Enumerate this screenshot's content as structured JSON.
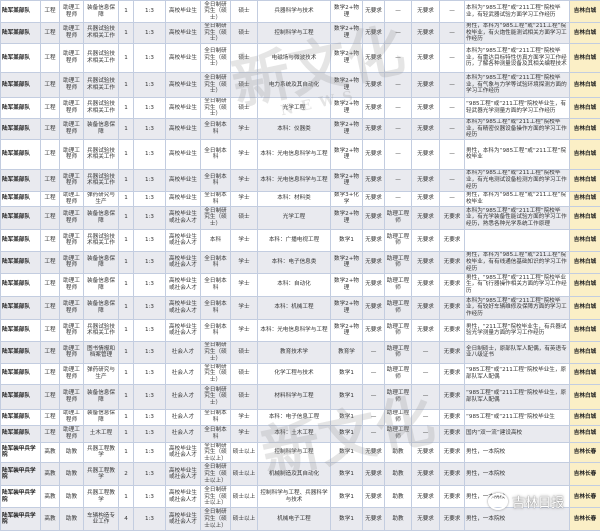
{
  "colors": {
    "border": "#c3cde0",
    "alt_row": "#e9eaef",
    "location_cell": "#fbefc6"
  },
  "watermark": {
    "text": "新文化",
    "subtext": "NEWS"
  },
  "logo": {
    "icon": "wechat-icon",
    "text": "吉林日报"
  },
  "rows": [
    [
      "陆军某部队",
      "工程",
      "助理工程师",
      "装备信息保障",
      "1",
      "1:3",
      "高校毕业生",
      "全日制研究生（硕士）",
      "硕士",
      "兵器科学与技术",
      "数学2+物理",
      "无要求",
      "—",
      "无要求",
      "—",
      "本科为“985工程”或“211工程”院校毕业，有轻武器试验方面学习工作经历",
      "吉林白城"
    ],
    [
      "陆军某部队",
      "工程",
      "助理工程师",
      "兵器试验技术相关工作",
      "1",
      "1:3",
      "高校毕业生",
      "全日制研究生（硕士）",
      "硕士",
      "控制科学与工程",
      "数学2+物理",
      "无要求",
      "—",
      "无要求",
      "—",
      "男性，本科为“985工程”或“211工程”院校毕业，有火炮性能测试相关方面学习工作经历",
      "吉林白城"
    ],
    [
      "陆军某部队",
      "工程",
      "助理工程师",
      "兵器试验技术相关工作",
      "1",
      "1:3",
      "高校毕业生",
      "全日制研究生（硕士）",
      "硕士",
      "电磁场与微波技术",
      "数学2+物理",
      "无要求",
      "—",
      "无要求",
      "—",
      "本科为“985工程”或“211工程”院校毕业，有雷达目标特性仿真方面学习工作经历，了解各种测量设备及其相关编程技术",
      "吉林白城"
    ],
    [
      "陆军某部队",
      "工程",
      "助理工程师",
      "兵器试验技术相关工作",
      "1",
      "1:3",
      "高校毕业生",
      "全日制研究生（硕士）",
      "硕士",
      "电力系统及其自动化",
      "数学2+物理",
      "无要求",
      "—",
      "无要求",
      "—",
      "本科为“985工程”或“211工程”院校毕业，有气象与力学等试验环境探测方面的学习工作经历",
      "吉林白城"
    ],
    [
      "陆军某部队",
      "工程",
      "助理工程师",
      "兵器试验技术相关工作",
      "1",
      "1:3",
      "高校毕业生",
      "全日制研究生（硕士）",
      "硕士",
      "光学工程",
      "数学2+物理",
      "无要求",
      "—",
      "无要求",
      "—",
      "“985工程”或“211工程”院校毕业生，有轻武器光学测量方面的学习工作经历",
      "吉林白城"
    ],
    [
      "陆军某部队",
      "工程",
      "助理工程师",
      "装备信息保障",
      "1",
      "1:3",
      "高校毕业生",
      "全日制本科",
      "学士",
      "本科：仪器类",
      "数学2+物理",
      "无要求",
      "—",
      "无要求",
      "—",
      "本科为“985工程”或“211工程”院校毕业，有精密仪器设备操作方面的学习工作经历",
      "吉林白城"
    ],
    [
      "陆军某部队",
      "工程",
      "助理工程师",
      "兵器试验技术相关工作",
      "1",
      "1:3",
      "高校毕业生",
      "全日制本科",
      "学士",
      "本科：光电信息科学与工程",
      "数学2+物理",
      "无要求",
      "—",
      "无要求",
      "—",
      "男性，本科为“985工程”或“211工程”院校毕业",
      "吉林白城"
    ],
    [
      "陆军某部队",
      "工程",
      "助理工程师",
      "兵器试验技术相关工作",
      "1",
      "1:3",
      "高校毕业生",
      "全日制本科",
      "学士",
      "本科：光电信息科学与工程",
      "数学2+物理",
      "无要求",
      "—",
      "无要求",
      "—",
      "本科为“985工程”或“211工程”院校毕业，有光电测试设备检测方面的学习工作经历",
      "吉林白城"
    ],
    [
      "陆军某部队",
      "工程",
      "助理工程师",
      "弹药研究与生产",
      "1",
      "1:3",
      "高校毕业生",
      "全日制本科",
      "学士",
      "本科：材料类",
      "数学3+化学",
      "无要求",
      "—",
      "无要求",
      "—",
      "男性，本科为“985工程”或“211工程”院校毕业",
      "吉林白城"
    ],
    [
      "陆军某部队",
      "工程",
      "助理工程师",
      "装备信息保障",
      "1",
      "1:3",
      "高校毕业生或社会人才",
      "全日制研究生（硕士）",
      "硕士",
      "光学工程",
      "数学2+物理",
      "无要求",
      "助理工程师",
      "无要求",
      "无要求",
      "本科为“985工程”或“211工程”院校毕业，有光学装备性能试验方面的学习工作经历，熟悉各种光学系统工作原理",
      "吉林白城"
    ],
    [
      "陆军某部队",
      "工程",
      "助理工程师",
      "兵器试验技术相关工作",
      "1",
      "1:3",
      "高校毕业生或社会人才",
      "本科",
      "学士",
      "本科：广播电视工程",
      "数学1",
      "无要求",
      "助理工程师",
      "无要求",
      "无要求",
      "",
      "吉林白城"
    ],
    [
      "陆军某部队",
      "工程",
      "助理工程师",
      "装备信息保障",
      "1",
      "1:3",
      "高校毕业生或社会人才",
      "全日制本科",
      "学士",
      "本科：电子信息类",
      "数学2+物理",
      "无要求",
      "助理工程师",
      "无要求",
      "无要求",
      "男性，本科为“985工程”或“211工程”院校毕业，有有线通信基础知识的学习工作经历",
      "吉林白城"
    ],
    [
      "陆军某部队",
      "工程",
      "助理工程师",
      "装备信息保障",
      "1",
      "1:3",
      "高校毕业生或社会人才",
      "全日制本科",
      "学士",
      "本科：自动化",
      "数学2+物理",
      "无要求",
      "助理工程师",
      "无要求",
      "无要求",
      "男性，“985工程”或“211工程”院校毕业生，有飞行器操作相关方面的学习工作经历",
      "吉林白城"
    ],
    [
      "陆军某部队",
      "工程",
      "助理工程师",
      "装备信息保障",
      "1",
      "1:3",
      "高校毕业生或社会人才",
      "全日制本科",
      "学士",
      "本科：机械工程",
      "数学2+物理",
      "无要求",
      "助理工程师",
      "无要求",
      "无要求",
      "本科为“985工程”或“211工程”院校毕业，有较好车辆维修及保障方面的学习工作经历",
      "吉林白城"
    ],
    [
      "陆军某部队",
      "工程",
      "助理工程师",
      "兵器试验技术相关工作",
      "1",
      "1:3",
      "高校毕业生或社会人才",
      "全日制本科",
      "学士",
      "本科：光电信息科学与工程",
      "数学2+物理",
      "无要求",
      "助理工程师",
      "无要求",
      "无要求",
      "男性，“211工程”院校毕业生，有兵器试验光学测量方面的学习工作经历",
      "吉林白城"
    ],
    [
      "陆军某部队",
      "工程",
      "助理工程师",
      "图书情报和档案管理",
      "1",
      "1:3",
      "社会人才",
      "全日制研究生（硕士）",
      "硕士",
      "教育技术学",
      "教育学",
      "—",
      "助理工程师",
      "—",
      "无要求",
      "全日制硕士，原部队军人配偶，有英语专业八级证书",
      "吉林白城"
    ],
    [
      "陆军某部队",
      "工程",
      "助理工程师",
      "弹药研究与生产",
      "1",
      "1:3",
      "社会人才",
      "全日制研究生（硕士）",
      "硕士",
      "化学工程与技术",
      "数学1",
      "—",
      "助理工程师",
      "—",
      "无要求",
      "“985工程”或“211工程”院校毕业生，原部队军人配偶",
      "吉林白城"
    ],
    [
      "陆军某部队",
      "工程",
      "助理工程师",
      "装备信息保障",
      "1",
      "1:3",
      "社会人才",
      "全日制研究生（硕士）",
      "硕士",
      "材料科学与工程",
      "数学1",
      "—",
      "助理工程师",
      "—",
      "无要求",
      "“985工程”或“211工程”院校毕业生，原部队军人配偶",
      "吉林白城"
    ],
    [
      "陆军某部队",
      "工程",
      "助理工程师",
      "装备信息保障",
      "1",
      "1:3",
      "社会人才",
      "全日制本科",
      "学士",
      "本科：电子信息工程",
      "数学1",
      "—",
      "助理工程师",
      "—",
      "无要求",
      "“985工程”或“211工程”院校毕业生",
      "吉林白城"
    ],
    [
      "陆军某部队",
      "工程",
      "助理工程师",
      "土木工程",
      "1",
      "1:3",
      "社会人才",
      "全日制本科",
      "学士",
      "本科：土木工程",
      "数学1",
      "—",
      "助理工程师",
      "—",
      "无要求",
      "国内“双一流”建设高校",
      "吉林白城"
    ],
    [
      "陆军装甲兵学院",
      "高教",
      "助教",
      "兵器工程教学",
      "1",
      "1:3",
      "高校毕业生或社会人才",
      "全日制研究生（硕士以上）",
      "硕士以上",
      "控制科学与工程",
      "数学1",
      "无要求",
      "助教",
      "无要求",
      "无要求",
      "男性，一本院校",
      "吉林长春"
    ],
    [
      "陆军装甲兵学院",
      "高教",
      "助教",
      "兵器工程教学",
      "2",
      "1:3",
      "高校毕业生或社会人才",
      "全日制研究生（硕士以上）",
      "硕士以上",
      "机械制造及其自动化",
      "数学1",
      "无要求",
      "助教",
      "无要求",
      "无要求",
      "男性，一本院校",
      "吉林长春"
    ],
    [
      "陆军装甲兵学院",
      "高教",
      "助教",
      "兵器工程教学",
      "1",
      "1:3",
      "高校毕业生或社会人才",
      "全日制研究生（硕士以上）",
      "硕士以上",
      "控制科学与工程、兵器科学与技术",
      "数学1",
      "无要求",
      "助教",
      "无要求",
      "无要求",
      "男性，一本院校",
      "吉林长春"
    ],
    [
      "陆军装甲兵学院",
      "高教",
      "助教",
      "车辆构造专业工作",
      "4",
      "1:3",
      "高校毕业生或社会人才",
      "全日制研究生（硕士以上）",
      "硕士以上",
      "机械电子工程",
      "数学1",
      "无要求",
      "助教",
      "无要求",
      "无要求",
      "男性，一本院校",
      "吉林长春"
    ]
  ]
}
